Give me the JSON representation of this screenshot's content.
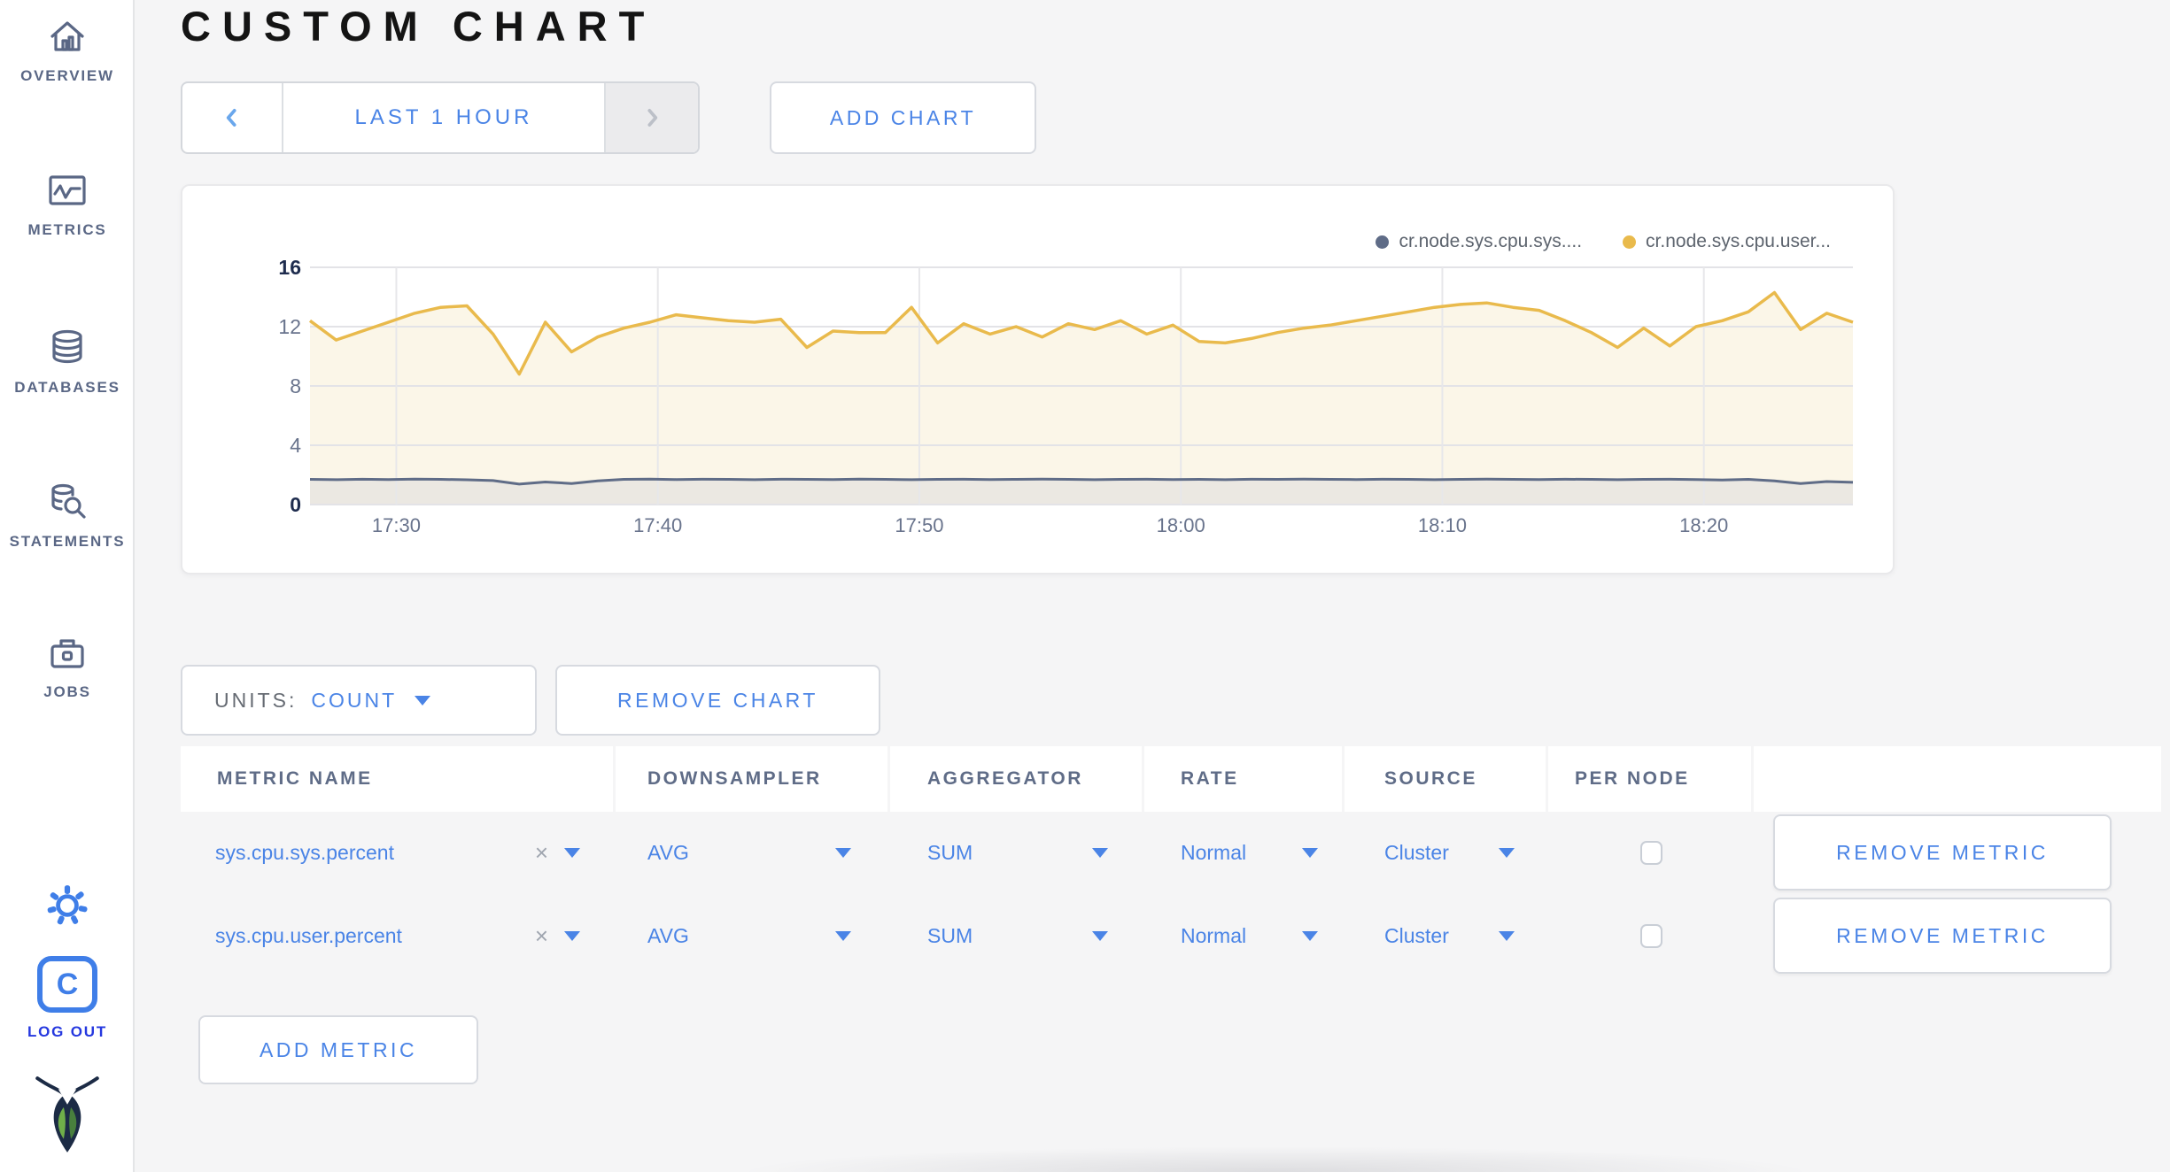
{
  "sidebar": {
    "items": [
      {
        "label": "OVERVIEW"
      },
      {
        "label": "METRICS"
      },
      {
        "label": "DATABASES"
      },
      {
        "label": "STATEMENTS"
      },
      {
        "label": "JOBS"
      }
    ],
    "logo_letter": "C",
    "logout_label": "LOG OUT"
  },
  "header": {
    "title": "CUSTOM CHART",
    "time_range_label": "LAST 1 HOUR",
    "add_chart_label": "ADD CHART"
  },
  "chart_controls": {
    "units_label": "UNITS:",
    "units_value": "COUNT",
    "remove_chart_label": "REMOVE CHART"
  },
  "metrics_table": {
    "columns": [
      "METRIC NAME",
      "DOWNSAMPLER",
      "AGGREGATOR",
      "RATE",
      "SOURCE",
      "PER NODE"
    ],
    "rows": [
      {
        "metric": "sys.cpu.sys.percent",
        "downsampler": "AVG",
        "aggregator": "SUM",
        "rate": "Normal",
        "source": "Cluster",
        "per_node": false
      },
      {
        "metric": "sys.cpu.user.percent",
        "downsampler": "AVG",
        "aggregator": "SUM",
        "rate": "Normal",
        "source": "Cluster",
        "per_node": false
      }
    ],
    "clear_glyph": "×",
    "remove_metric_label": "REMOVE METRIC",
    "add_metric_label": "ADD METRIC"
  },
  "colors": {
    "accent_blue": "#4a84e6",
    "logout_blue": "#2538df",
    "slate": "#5f6c87",
    "series_yellow": "#e9ba4c",
    "series_gray": "#606d88"
  },
  "chart_data": {
    "type": "line",
    "title": "",
    "x_tick_labels": [
      "17:30",
      "17:40",
      "17:50",
      "18:00",
      "18:10",
      "18:20"
    ],
    "x_tick_minutes": [
      3.3,
      13.3,
      23.3,
      33.3,
      43.3,
      53.3
    ],
    "x_domain_minutes": [
      0,
      59
    ],
    "sample_interval_minutes": 1,
    "y_ticks": [
      0,
      4,
      8,
      12,
      16
    ],
    "ylim": [
      0,
      16
    ],
    "grid": true,
    "legend_position": "top-right",
    "series": [
      {
        "name": "cr.node.sys.cpu.sys....",
        "color": "#5f6c87",
        "fill": "#ebe8e2",
        "values": [
          1.7,
          1.68,
          1.71,
          1.69,
          1.72,
          1.7,
          1.67,
          1.62,
          1.38,
          1.52,
          1.42,
          1.6,
          1.7,
          1.72,
          1.69,
          1.71,
          1.7,
          1.68,
          1.71,
          1.7,
          1.69,
          1.72,
          1.7,
          1.68,
          1.7,
          1.71,
          1.69,
          1.7,
          1.72,
          1.7,
          1.68,
          1.7,
          1.71,
          1.69,
          1.7,
          1.68,
          1.71,
          1.7,
          1.72,
          1.7,
          1.69,
          1.71,
          1.7,
          1.68,
          1.7,
          1.72,
          1.7,
          1.69,
          1.71,
          1.7,
          1.68,
          1.7,
          1.71,
          1.69,
          1.66,
          1.7,
          1.6,
          1.42,
          1.55,
          1.5
        ]
      },
      {
        "name": "cr.node.sys.cpu.user...",
        "color": "#e9ba4c",
        "fill": "#fbf6e8",
        "values": [
          12.4,
          11.1,
          11.7,
          12.3,
          12.9,
          13.3,
          13.4,
          11.5,
          8.8,
          12.3,
          10.3,
          11.3,
          11.9,
          12.3,
          12.8,
          12.6,
          12.4,
          12.3,
          12.5,
          10.6,
          11.7,
          11.6,
          11.6,
          13.3,
          10.9,
          12.2,
          11.5,
          12.0,
          11.3,
          12.2,
          11.8,
          12.4,
          11.5,
          12.1,
          11.0,
          10.9,
          11.2,
          11.6,
          11.9,
          12.1,
          12.4,
          12.7,
          13.0,
          13.3,
          13.5,
          13.6,
          13.3,
          13.1,
          12.4,
          11.6,
          10.6,
          11.9,
          10.7,
          12.0,
          12.4,
          13.0,
          14.3,
          11.8,
          12.9,
          12.3
        ]
      }
    ]
  }
}
